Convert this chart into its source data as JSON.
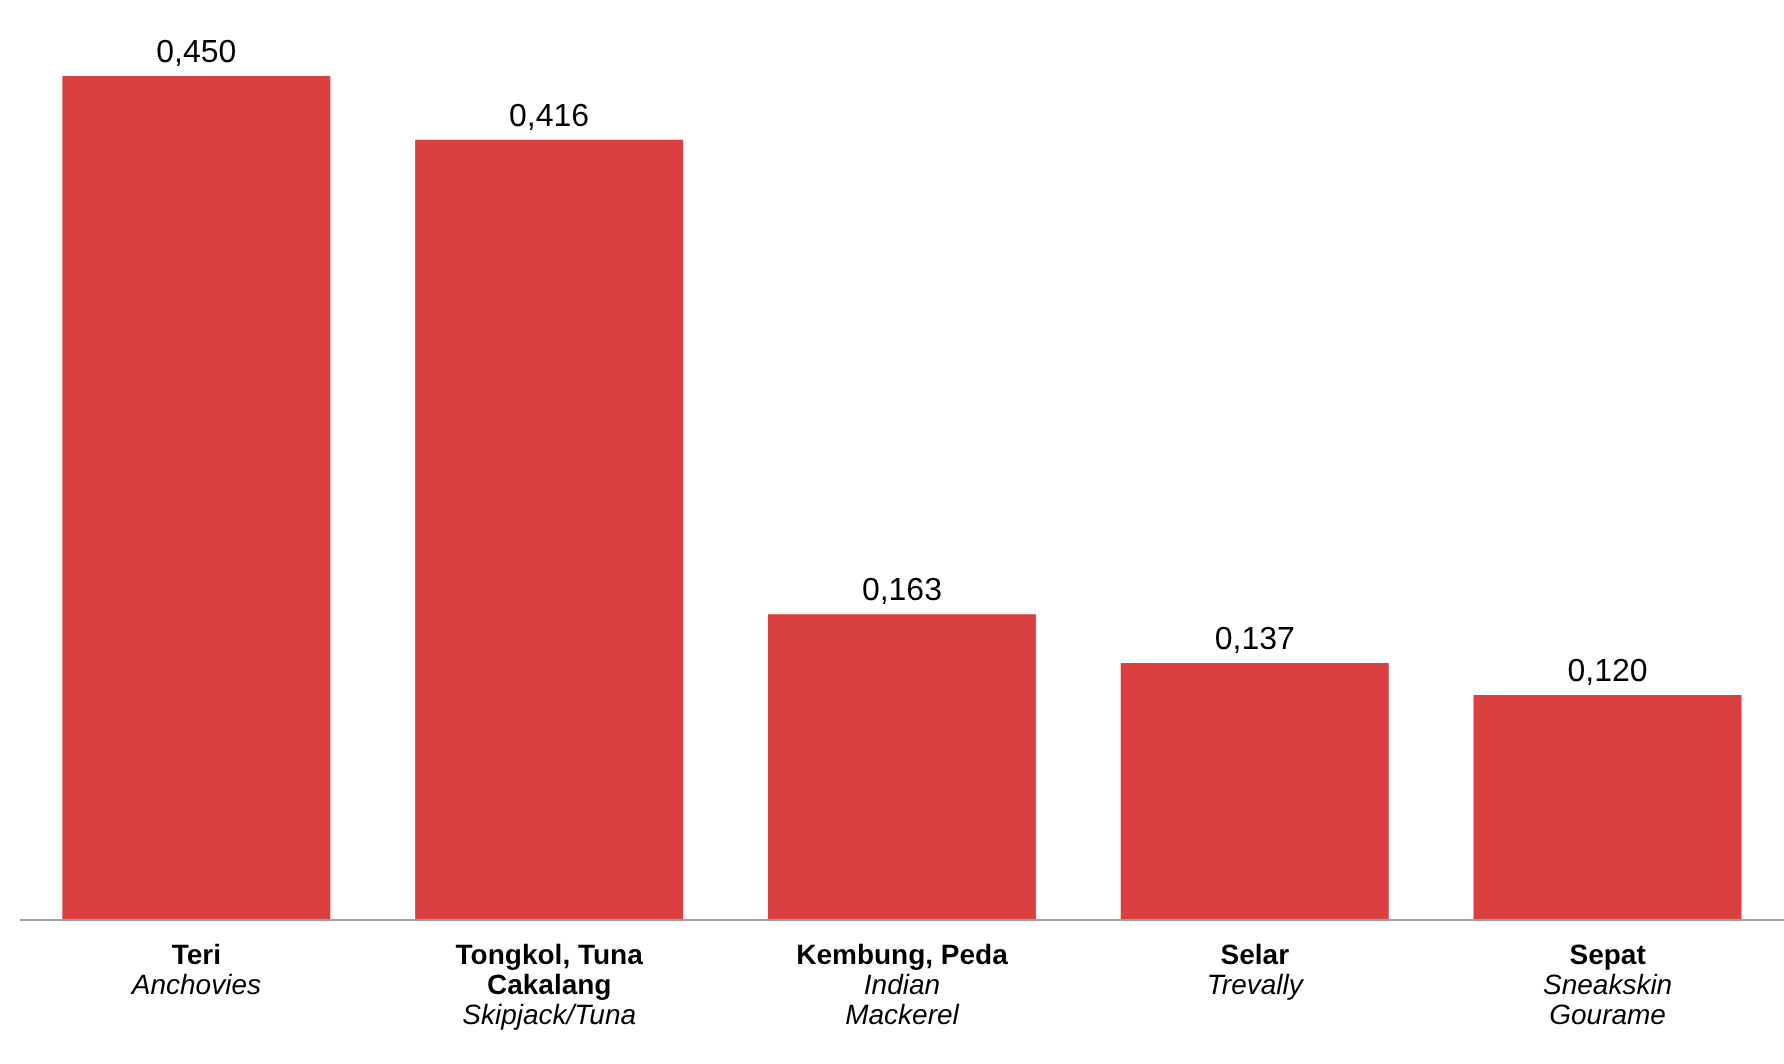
{
  "chart_data": {
    "type": "bar",
    "categories": [
      "Teri\nAnchovies",
      "Tongkol, Tuna Cakalang\nSkipjack/Tuna",
      "Kembung, Peda\nIndian Mackerel",
      "Selar\nTrevally",
      "Sepat\nSneakskin Gourame"
    ],
    "values": [
      0.45,
      0.416,
      0.163,
      0.137,
      0.12
    ],
    "value_labels": [
      "0,450",
      "0,416",
      "0,163",
      "0,137",
      "0,120"
    ],
    "color": "#d9403f",
    "grid": false,
    "legend": false
  }
}
